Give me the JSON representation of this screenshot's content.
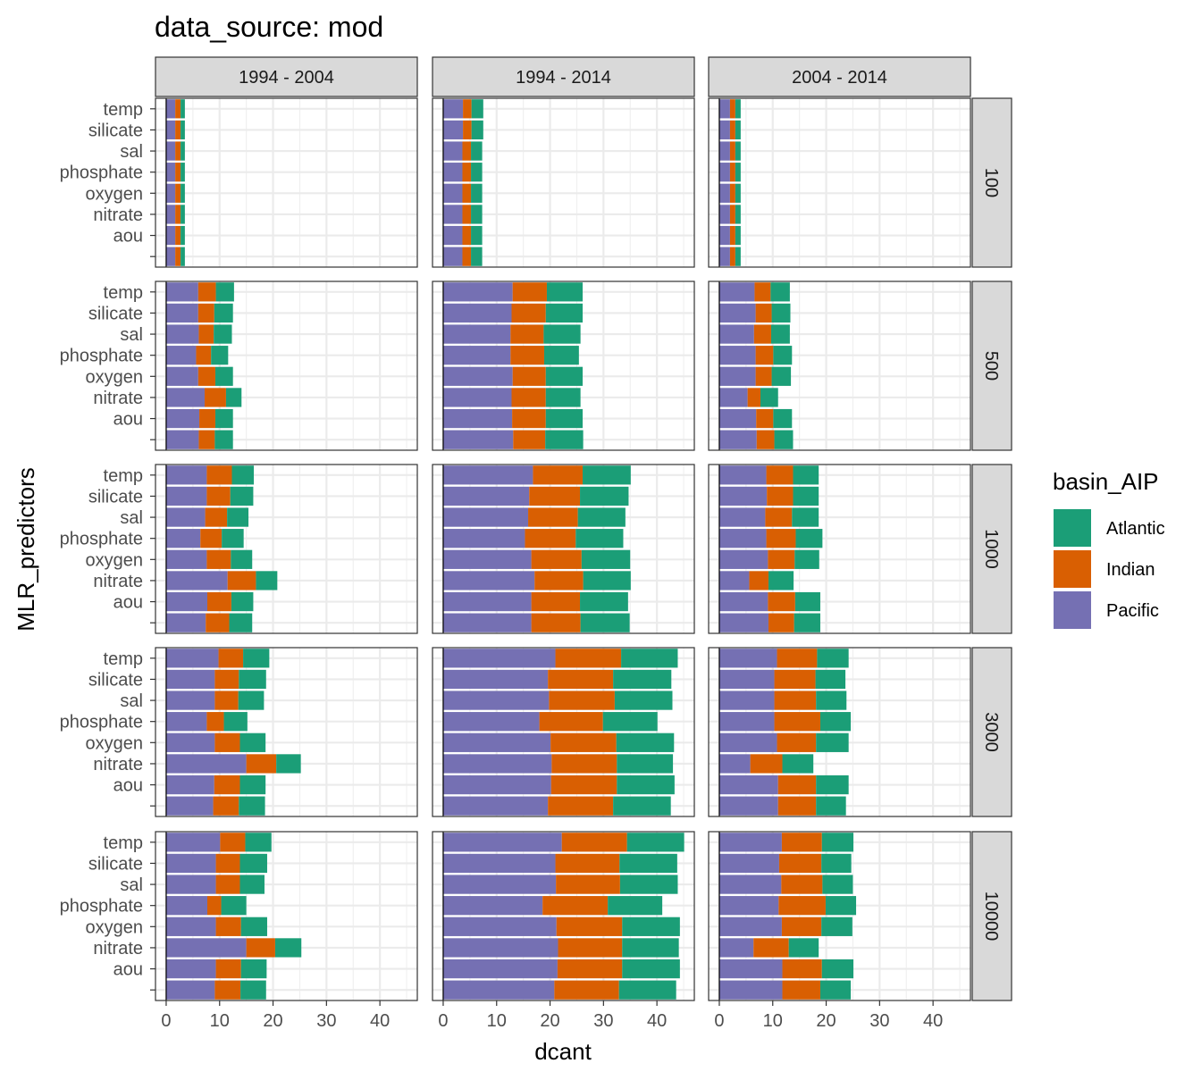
{
  "chart_data": {
    "type": "bar",
    "title": "data_source: mod",
    "xlabel": "dcant",
    "ylabel": "MLR_predictors",
    "orientation": "horizontal",
    "stacked": true,
    "xlim": [
      -2,
      47
    ],
    "x_ticks": [
      0,
      10,
      20,
      30,
      40
    ],
    "grid": true,
    "legend": {
      "title": "basin_AIP",
      "position": "right",
      "entries": [
        "Atlantic",
        "Indian",
        "Pacific"
      ]
    },
    "colors": {
      "Atlantic": "#1b9e77",
      "Indian": "#d95f02",
      "Pacific": "#7570b3"
    },
    "categories": [
      "temp",
      "silicate",
      "sal",
      "phosphate",
      "oxygen",
      "nitrate",
      "aou",
      ""
    ],
    "stack_order": [
      "Pacific",
      "Indian",
      "Atlantic"
    ],
    "columns": [
      "1994 - 2004",
      "1994 - 2014",
      "2004 - 2014"
    ],
    "rows": [
      "100",
      "500",
      "1000",
      "3000",
      "10000"
    ],
    "panels": [
      {
        "column": "1994 - 2004",
        "row": "100",
        "bars": [
          {
            "Pacific": 1.7,
            "Indian": 1.0,
            "Atlantic": 0.8
          },
          {
            "Pacific": 1.7,
            "Indian": 1.0,
            "Atlantic": 0.8
          },
          {
            "Pacific": 1.7,
            "Indian": 1.0,
            "Atlantic": 0.8
          },
          {
            "Pacific": 1.7,
            "Indian": 1.0,
            "Atlantic": 0.8
          },
          {
            "Pacific": 1.7,
            "Indian": 1.0,
            "Atlantic": 0.8
          },
          {
            "Pacific": 1.7,
            "Indian": 1.0,
            "Atlantic": 0.8
          },
          {
            "Pacific": 1.7,
            "Indian": 1.0,
            "Atlantic": 0.8
          },
          {
            "Pacific": 1.7,
            "Indian": 1.0,
            "Atlantic": 0.8
          }
        ]
      },
      {
        "column": "1994 - 2014",
        "row": "100",
        "bars": [
          {
            "Pacific": 3.7,
            "Indian": 1.6,
            "Atlantic": 2.2
          },
          {
            "Pacific": 3.7,
            "Indian": 1.6,
            "Atlantic": 2.2
          },
          {
            "Pacific": 3.6,
            "Indian": 1.6,
            "Atlantic": 2.1
          },
          {
            "Pacific": 3.6,
            "Indian": 1.6,
            "Atlantic": 2.1
          },
          {
            "Pacific": 3.6,
            "Indian": 1.6,
            "Atlantic": 2.1
          },
          {
            "Pacific": 3.6,
            "Indian": 1.6,
            "Atlantic": 2.1
          },
          {
            "Pacific": 3.6,
            "Indian": 1.6,
            "Atlantic": 2.1
          },
          {
            "Pacific": 3.6,
            "Indian": 1.6,
            "Atlantic": 2.1
          }
        ]
      },
      {
        "column": "2004 - 2014",
        "row": "100",
        "bars": [
          {
            "Pacific": 2.0,
            "Indian": 1.0,
            "Atlantic": 1.0
          },
          {
            "Pacific": 2.0,
            "Indian": 1.0,
            "Atlantic": 1.0
          },
          {
            "Pacific": 2.0,
            "Indian": 1.0,
            "Atlantic": 1.0
          },
          {
            "Pacific": 2.0,
            "Indian": 1.0,
            "Atlantic": 1.0
          },
          {
            "Pacific": 2.0,
            "Indian": 1.0,
            "Atlantic": 1.0
          },
          {
            "Pacific": 2.0,
            "Indian": 1.0,
            "Atlantic": 1.0
          },
          {
            "Pacific": 2.0,
            "Indian": 1.0,
            "Atlantic": 1.0
          },
          {
            "Pacific": 2.0,
            "Indian": 1.0,
            "Atlantic": 1.0
          }
        ]
      },
      {
        "column": "1994 - 2004",
        "row": "500",
        "bars": [
          {
            "Pacific": 6.0,
            "Indian": 3.3,
            "Atlantic": 3.4
          },
          {
            "Pacific": 6.0,
            "Indian": 3.0,
            "Atlantic": 3.5
          },
          {
            "Pacific": 6.1,
            "Indian": 2.8,
            "Atlantic": 3.4
          },
          {
            "Pacific": 5.6,
            "Indian": 2.8,
            "Atlantic": 3.2
          },
          {
            "Pacific": 6.0,
            "Indian": 3.2,
            "Atlantic": 3.3
          },
          {
            "Pacific": 7.2,
            "Indian": 4.0,
            "Atlantic": 2.9
          },
          {
            "Pacific": 6.2,
            "Indian": 3.0,
            "Atlantic": 3.3
          },
          {
            "Pacific": 6.1,
            "Indian": 3.0,
            "Atlantic": 3.4
          }
        ]
      },
      {
        "column": "1994 - 2014",
        "row": "500",
        "bars": [
          {
            "Pacific": 13.0,
            "Indian": 6.4,
            "Atlantic": 6.7
          },
          {
            "Pacific": 12.8,
            "Indian": 6.4,
            "Atlantic": 6.9
          },
          {
            "Pacific": 12.6,
            "Indian": 6.2,
            "Atlantic": 6.9
          },
          {
            "Pacific": 12.6,
            "Indian": 6.3,
            "Atlantic": 6.5
          },
          {
            "Pacific": 13.0,
            "Indian": 6.2,
            "Atlantic": 6.9
          },
          {
            "Pacific": 12.8,
            "Indian": 6.4,
            "Atlantic": 6.5
          },
          {
            "Pacific": 12.9,
            "Indian": 6.3,
            "Atlantic": 6.9
          },
          {
            "Pacific": 13.1,
            "Indian": 6.0,
            "Atlantic": 7.1
          }
        ]
      },
      {
        "column": "2004 - 2014",
        "row": "500",
        "bars": [
          {
            "Pacific": 6.6,
            "Indian": 3.0,
            "Atlantic": 3.6
          },
          {
            "Pacific": 6.8,
            "Indian": 3.0,
            "Atlantic": 3.5
          },
          {
            "Pacific": 6.5,
            "Indian": 3.2,
            "Atlantic": 3.5
          },
          {
            "Pacific": 6.8,
            "Indian": 3.3,
            "Atlantic": 3.5
          },
          {
            "Pacific": 6.8,
            "Indian": 3.0,
            "Atlantic": 3.6
          },
          {
            "Pacific": 5.3,
            "Indian": 2.4,
            "Atlantic": 3.3
          },
          {
            "Pacific": 6.9,
            "Indian": 3.2,
            "Atlantic": 3.5
          },
          {
            "Pacific": 7.0,
            "Indian": 3.3,
            "Atlantic": 3.5
          }
        ]
      },
      {
        "column": "1994 - 2004",
        "row": "1000",
        "bars": [
          {
            "Pacific": 7.6,
            "Indian": 4.7,
            "Atlantic": 4.1
          },
          {
            "Pacific": 7.6,
            "Indian": 4.4,
            "Atlantic": 4.3
          },
          {
            "Pacific": 7.3,
            "Indian": 4.1,
            "Atlantic": 4.0
          },
          {
            "Pacific": 6.4,
            "Indian": 4.0,
            "Atlantic": 4.1
          },
          {
            "Pacific": 7.6,
            "Indian": 4.5,
            "Atlantic": 4.0
          },
          {
            "Pacific": 11.5,
            "Indian": 5.3,
            "Atlantic": 4.0
          },
          {
            "Pacific": 7.7,
            "Indian": 4.5,
            "Atlantic": 4.1
          },
          {
            "Pacific": 7.4,
            "Indian": 4.4,
            "Atlantic": 4.3
          }
        ]
      },
      {
        "column": "1994 - 2014",
        "row": "1000",
        "bars": [
          {
            "Pacific": 16.8,
            "Indian": 9.3,
            "Atlantic": 9.0
          },
          {
            "Pacific": 16.1,
            "Indian": 9.5,
            "Atlantic": 9.1
          },
          {
            "Pacific": 15.9,
            "Indian": 9.3,
            "Atlantic": 8.9
          },
          {
            "Pacific": 15.3,
            "Indian": 9.5,
            "Atlantic": 8.9
          },
          {
            "Pacific": 16.5,
            "Indian": 9.4,
            "Atlantic": 9.1
          },
          {
            "Pacific": 17.1,
            "Indian": 9.1,
            "Atlantic": 8.9
          },
          {
            "Pacific": 16.5,
            "Indian": 9.1,
            "Atlantic": 9.0
          },
          {
            "Pacific": 16.5,
            "Indian": 9.2,
            "Atlantic": 9.2
          }
        ]
      },
      {
        "column": "2004 - 2014",
        "row": "1000",
        "bars": [
          {
            "Pacific": 8.8,
            "Indian": 5.0,
            "Atlantic": 4.8
          },
          {
            "Pacific": 8.9,
            "Indian": 4.9,
            "Atlantic": 4.8
          },
          {
            "Pacific": 8.6,
            "Indian": 5.0,
            "Atlantic": 5.0
          },
          {
            "Pacific": 8.8,
            "Indian": 5.5,
            "Atlantic": 5.0
          },
          {
            "Pacific": 9.1,
            "Indian": 5.0,
            "Atlantic": 4.6
          },
          {
            "Pacific": 5.6,
            "Indian": 3.6,
            "Atlantic": 4.7
          },
          {
            "Pacific": 9.1,
            "Indian": 5.1,
            "Atlantic": 4.7
          },
          {
            "Pacific": 9.2,
            "Indian": 4.8,
            "Atlantic": 4.9
          }
        ]
      },
      {
        "column": "1994 - 2004",
        "row": "3000",
        "bars": [
          {
            "Pacific": 9.8,
            "Indian": 4.6,
            "Atlantic": 4.9
          },
          {
            "Pacific": 9.1,
            "Indian": 4.5,
            "Atlantic": 5.1
          },
          {
            "Pacific": 9.1,
            "Indian": 4.4,
            "Atlantic": 4.8
          },
          {
            "Pacific": 7.6,
            "Indian": 3.2,
            "Atlantic": 4.4
          },
          {
            "Pacific": 9.1,
            "Indian": 4.7,
            "Atlantic": 4.8
          },
          {
            "Pacific": 15.0,
            "Indian": 5.6,
            "Atlantic": 4.6
          },
          {
            "Pacific": 9.0,
            "Indian": 4.8,
            "Atlantic": 4.8
          },
          {
            "Pacific": 8.8,
            "Indian": 4.8,
            "Atlantic": 4.9
          }
        ]
      },
      {
        "column": "1994 - 2014",
        "row": "3000",
        "bars": [
          {
            "Pacific": 21.0,
            "Indian": 12.3,
            "Atlantic": 10.6
          },
          {
            "Pacific": 19.6,
            "Indian": 12.2,
            "Atlantic": 10.9
          },
          {
            "Pacific": 19.8,
            "Indian": 12.3,
            "Atlantic": 10.8
          },
          {
            "Pacific": 18.0,
            "Indian": 11.9,
            "Atlantic": 10.2
          },
          {
            "Pacific": 20.1,
            "Indian": 12.3,
            "Atlantic": 10.8
          },
          {
            "Pacific": 20.3,
            "Indian": 12.2,
            "Atlantic": 10.5
          },
          {
            "Pacific": 20.2,
            "Indian": 12.3,
            "Atlantic": 10.8
          },
          {
            "Pacific": 19.6,
            "Indian": 12.2,
            "Atlantic": 10.8
          }
        ]
      },
      {
        "column": "2004 - 2014",
        "row": "3000",
        "bars": [
          {
            "Pacific": 10.8,
            "Indian": 7.5,
            "Atlantic": 5.9
          },
          {
            "Pacific": 10.3,
            "Indian": 7.7,
            "Atlantic": 5.6
          },
          {
            "Pacific": 10.3,
            "Indian": 7.8,
            "Atlantic": 5.7
          },
          {
            "Pacific": 10.3,
            "Indian": 8.6,
            "Atlantic": 5.7
          },
          {
            "Pacific": 10.8,
            "Indian": 7.3,
            "Atlantic": 6.1
          },
          {
            "Pacific": 5.8,
            "Indian": 6.0,
            "Atlantic": 5.8
          },
          {
            "Pacific": 11.0,
            "Indian": 7.1,
            "Atlantic": 6.1
          },
          {
            "Pacific": 11.0,
            "Indian": 7.1,
            "Atlantic": 5.6
          }
        ]
      },
      {
        "column": "1994 - 2004",
        "row": "10000",
        "bars": [
          {
            "Pacific": 10.1,
            "Indian": 4.7,
            "Atlantic": 4.9
          },
          {
            "Pacific": 9.3,
            "Indian": 4.5,
            "Atlantic": 5.1
          },
          {
            "Pacific": 9.3,
            "Indian": 4.5,
            "Atlantic": 4.6
          },
          {
            "Pacific": 7.7,
            "Indian": 2.6,
            "Atlantic": 4.7
          },
          {
            "Pacific": 9.3,
            "Indian": 4.7,
            "Atlantic": 4.9
          },
          {
            "Pacific": 15.0,
            "Indian": 5.4,
            "Atlantic": 4.9
          },
          {
            "Pacific": 9.3,
            "Indian": 4.7,
            "Atlantic": 4.8
          },
          {
            "Pacific": 9.1,
            "Indian": 4.8,
            "Atlantic": 4.8
          }
        ]
      },
      {
        "column": "1994 - 2014",
        "row": "10000",
        "bars": [
          {
            "Pacific": 22.2,
            "Indian": 12.2,
            "Atlantic": 10.7
          },
          {
            "Pacific": 21.0,
            "Indian": 12.0,
            "Atlantic": 10.8
          },
          {
            "Pacific": 21.1,
            "Indian": 12.0,
            "Atlantic": 10.8
          },
          {
            "Pacific": 18.6,
            "Indian": 12.2,
            "Atlantic": 10.2
          },
          {
            "Pacific": 21.2,
            "Indian": 12.3,
            "Atlantic": 10.8
          },
          {
            "Pacific": 21.5,
            "Indian": 12.0,
            "Atlantic": 10.6
          },
          {
            "Pacific": 21.4,
            "Indian": 12.1,
            "Atlantic": 10.8
          },
          {
            "Pacific": 20.8,
            "Indian": 12.1,
            "Atlantic": 10.7
          }
        ]
      },
      {
        "column": "2004 - 2014",
        "row": "10000",
        "bars": [
          {
            "Pacific": 11.7,
            "Indian": 7.5,
            "Atlantic": 5.9
          },
          {
            "Pacific": 11.2,
            "Indian": 7.9,
            "Atlantic": 5.6
          },
          {
            "Pacific": 11.6,
            "Indian": 7.7,
            "Atlantic": 5.7
          },
          {
            "Pacific": 11.1,
            "Indian": 8.8,
            "Atlantic": 5.7
          },
          {
            "Pacific": 11.7,
            "Indian": 7.4,
            "Atlantic": 5.8
          },
          {
            "Pacific": 6.4,
            "Indian": 6.6,
            "Atlantic": 5.6
          },
          {
            "Pacific": 11.8,
            "Indian": 7.4,
            "Atlantic": 5.9
          },
          {
            "Pacific": 11.8,
            "Indian": 7.1,
            "Atlantic": 5.7
          }
        ]
      }
    ]
  }
}
